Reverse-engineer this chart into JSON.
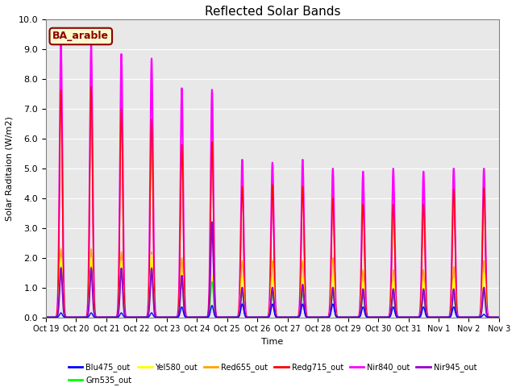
{
  "title": "Reflected Solar Bands",
  "xlabel": "Time",
  "ylabel": "Solar Raditaion (W/m2)",
  "ylim": [
    0,
    10.0
  ],
  "annotation_text": "BA_arable",
  "annotation_color": "#8B0000",
  "annotation_bg": "#FFFACD",
  "background_color": "#e8e8e8",
  "grid_color": "white",
  "series_colors": {
    "Blu475_out": "#0000FF",
    "Grn535_out": "#00FF00",
    "Yel580_out": "#FFFF00",
    "Red655_out": "#FFA500",
    "Redg715_out": "#FF0000",
    "Nir840_out": "#FF00FF",
    "Nir945_out": "#9900CC"
  },
  "xtick_labels": [
    "Oct 19",
    "Oct 20",
    "Oct 21",
    "Oct 22",
    "Oct 23",
    "Oct 24",
    "Oct 25",
    "Oct 26",
    "Oct 27",
    "Oct 28",
    "Oct 29",
    "Oct 30",
    "Oct 31",
    "Nov 1",
    "Nov 2",
    "Nov 3"
  ],
  "peaks": {
    "Nir840_out": [
      9.2,
      9.2,
      8.85,
      8.7,
      7.7,
      7.65,
      5.3,
      5.2,
      5.3,
      5.0,
      4.9,
      5.0,
      4.9,
      5.0,
      5.0
    ],
    "Redg715_out": [
      7.65,
      7.75,
      7.0,
      6.65,
      5.8,
      5.9,
      4.4,
      4.45,
      4.4,
      4.0,
      3.8,
      3.8,
      3.8,
      4.3,
      4.35
    ],
    "Red655_out": [
      2.3,
      2.3,
      2.2,
      2.2,
      2.0,
      3.2,
      1.9,
      1.9,
      1.9,
      2.0,
      1.6,
      1.6,
      1.6,
      1.7,
      1.9
    ],
    "Yel580_out": [
      2.0,
      2.0,
      1.9,
      2.1,
      1.5,
      1.4,
      1.35,
      1.35,
      1.35,
      1.4,
      1.2,
      1.2,
      1.2,
      1.3,
      1.5
    ],
    "Grn535_out": [
      1.7,
      1.7,
      1.6,
      1.5,
      1.15,
      1.2,
      0.8,
      0.8,
      0.8,
      0.8,
      0.7,
      0.7,
      0.7,
      0.7,
      0.8
    ],
    "Blu475_out": [
      0.15,
      0.15,
      0.15,
      0.15,
      0.35,
      0.4,
      0.45,
      0.45,
      0.45,
      0.45,
      0.35,
      0.35,
      0.35,
      0.35,
      0.1
    ],
    "Nir945_out": [
      1.65,
      1.65,
      1.65,
      1.65,
      1.4,
      3.2,
      1.0,
      1.0,
      1.1,
      1.0,
      0.95,
      0.95,
      0.95,
      0.95,
      1.0
    ]
  }
}
